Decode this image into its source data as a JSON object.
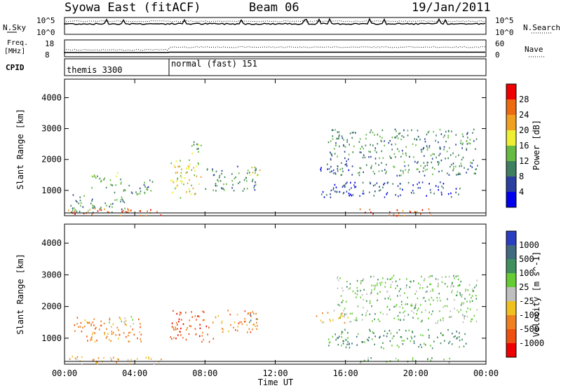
{
  "header": {
    "station": "Syowa East (fitACF)",
    "beam": "Beam 06",
    "date": "19/Jan/2011"
  },
  "panels_left": {
    "nsky": "N.Sky",
    "nsky_top": "10^5",
    "nsky_bot": "10^0",
    "freq_line1": "Freq.",
    "freq_line2": "[MHz]",
    "freq_top": "18",
    "freq_bot": "8",
    "cpid": "CPID"
  },
  "panels_right": {
    "nsearch": "N.Search",
    "nsearch_top": "10^5",
    "nsearch_bot": "10^0",
    "nave": "Nave",
    "nave_top": "60",
    "nave_bot": "0"
  },
  "cpid_labels": [
    "themis 3300",
    "normal (fast) 151"
  ],
  "colors": {
    "power": [
      "#0000ee",
      "#2a3f9f",
      "#3f7f5f",
      "#66bb44",
      "#eeee33",
      "#f0a020",
      "#ee6a10",
      "#ee0000"
    ],
    "velocity": [
      "#2a3fbf",
      "#3f6a7f",
      "#3f8f5f",
      "#66cc33",
      "#bfbfbf",
      "#f0c020",
      "#ee8020",
      "#ee5010",
      "#ee0000"
    ]
  },
  "chart_data": [
    {
      "type": "heatmap",
      "name": "power",
      "ylabel": "Slant Range [km]",
      "yticks": [
        "1000",
        "2000",
        "3000",
        "4000"
      ],
      "ylim": [
        180,
        4600
      ],
      "xlim": [
        0,
        24
      ],
      "colorbar_label": "Power [dB]",
      "colorbar_ticks": [
        "4",
        "8",
        "12",
        "16",
        "20",
        "24",
        "28"
      ],
      "regions": [
        {
          "t0": 0.0,
          "t1": 5.5,
          "r0": 200,
          "r1": 450,
          "level": 6
        },
        {
          "t0": 0.3,
          "t1": 3.5,
          "r0": 300,
          "r1": 900,
          "level": 2
        },
        {
          "t0": 1.5,
          "t1": 3.0,
          "r0": 1100,
          "r1": 1600,
          "level": 3
        },
        {
          "t0": 2.5,
          "t1": 5.0,
          "r0": 900,
          "r1": 1400,
          "level": 2
        },
        {
          "t0": 6.0,
          "t1": 7.8,
          "r0": 700,
          "r1": 2000,
          "level": 4
        },
        {
          "t0": 7.0,
          "t1": 7.8,
          "r0": 2000,
          "r1": 2600,
          "level": 3
        },
        {
          "t0": 8.0,
          "t1": 11.0,
          "r0": 1000,
          "r1": 1800,
          "level": 2
        },
        {
          "t0": 10.5,
          "t1": 11.3,
          "r0": 1500,
          "r1": 1800,
          "level": 4
        },
        {
          "t0": 14.5,
          "t1": 16.2,
          "r0": 1600,
          "r1": 1900,
          "level": 1
        },
        {
          "t0": 14.5,
          "t1": 22.5,
          "r0": 800,
          "r1": 1300,
          "level": 1
        },
        {
          "t0": 16.8,
          "t1": 21.0,
          "r0": 200,
          "r1": 420,
          "level": 6
        },
        {
          "t0": 15.0,
          "t1": 23.5,
          "r0": 1500,
          "r1": 3000,
          "level": 2
        }
      ]
    },
    {
      "type": "heatmap",
      "name": "velocity",
      "ylabel": "Slant Range [km]",
      "yticks": [
        "1000",
        "2000",
        "3000",
        "4000"
      ],
      "ylim": [
        180,
        4600
      ],
      "xlim": [
        0,
        24
      ],
      "colorbar_label": "Velocity [m s^-1]",
      "colorbar_ticks": [
        "1000",
        "500",
        "100",
        "25",
        "-25",
        "-100",
        "-500",
        "-1000"
      ],
      "regions": [
        {
          "t0": 0.0,
          "t1": 5.5,
          "r0": 200,
          "r1": 450,
          "level": 5
        },
        {
          "t0": 0.5,
          "t1": 4.5,
          "r0": 900,
          "r1": 1700,
          "level": 6
        },
        {
          "t0": 2.5,
          "t1": 4.0,
          "r0": 1400,
          "r1": 1700,
          "level": 4
        },
        {
          "t0": 6.0,
          "t1": 8.5,
          "r0": 900,
          "r1": 1900,
          "level": 7
        },
        {
          "t0": 8.5,
          "t1": 11.0,
          "r0": 1200,
          "r1": 1900,
          "level": 6
        },
        {
          "t0": 10.5,
          "t1": 11.0,
          "r0": 1500,
          "r1": 1800,
          "level": 1
        },
        {
          "t0": 14.3,
          "t1": 16.2,
          "r0": 1500,
          "r1": 1900,
          "level": 5
        },
        {
          "t0": 15.0,
          "t1": 23.0,
          "r0": 700,
          "r1": 1300,
          "level": 2
        },
        {
          "t0": 16.8,
          "t1": 22.0,
          "r0": 250,
          "r1": 420,
          "level": 3
        },
        {
          "t0": 15.5,
          "t1": 23.5,
          "r0": 1500,
          "r1": 3000,
          "level": 3
        }
      ]
    }
  ],
  "xaxis": {
    "ticks": [
      "00:00",
      "04:00",
      "08:00",
      "12:00",
      "16:00",
      "20:00",
      "00:00"
    ],
    "label": "Time UT"
  }
}
